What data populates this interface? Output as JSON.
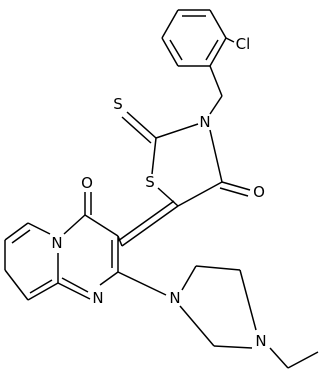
{
  "atoms": [
    {
      "label": "Cl"
    },
    {
      "label": "N"
    },
    {
      "label": "S"
    },
    {
      "label": "S"
    },
    {
      "label": "O"
    },
    {
      "label": "O"
    },
    {
      "label": "N"
    },
    {
      "label": "N"
    },
    {
      "label": "N"
    },
    {
      "label": "N"
    }
  ]
}
